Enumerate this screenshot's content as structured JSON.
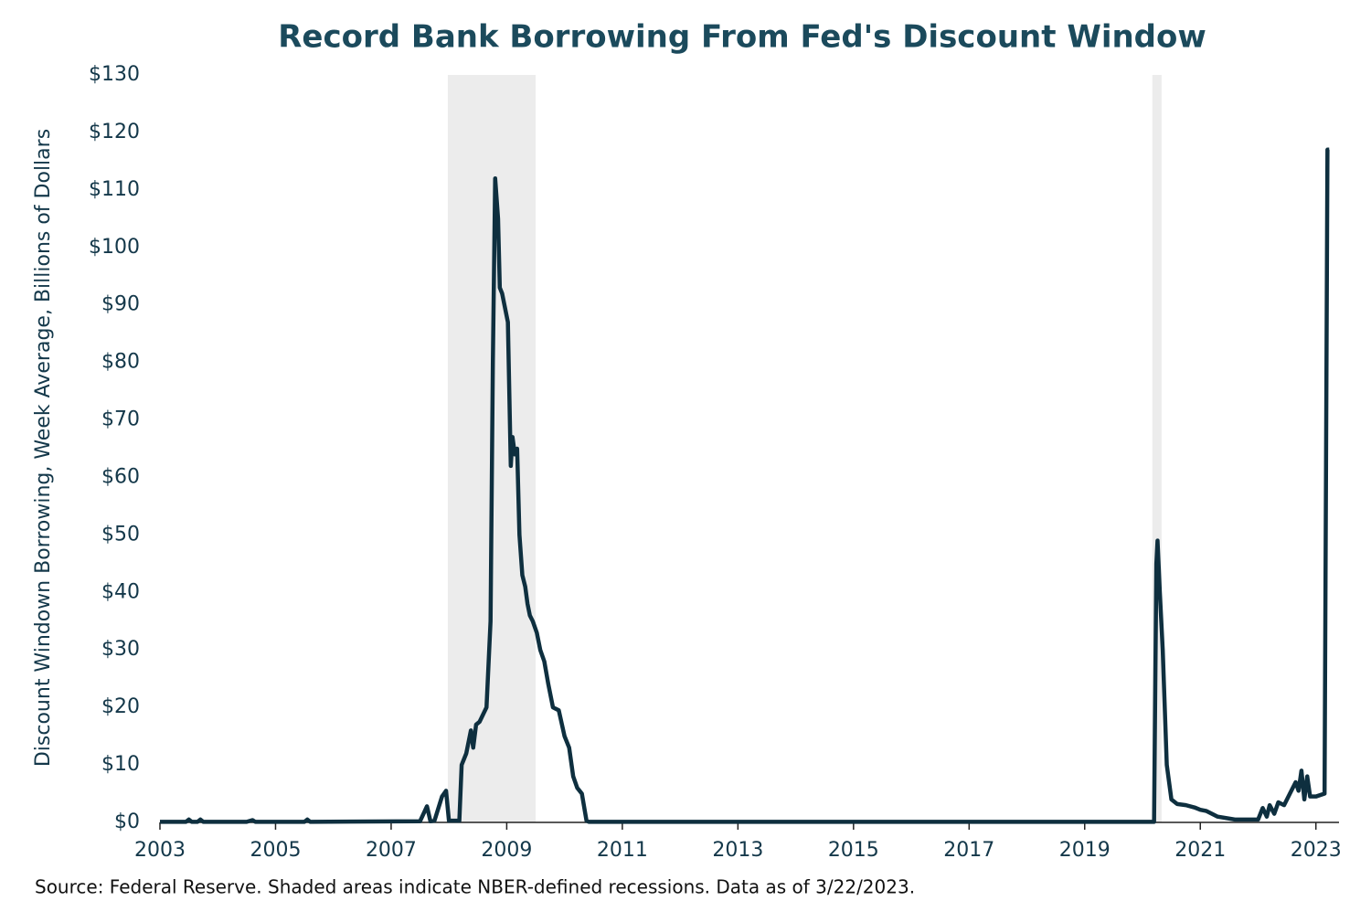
{
  "chart_data": {
    "type": "line",
    "title": "Record Bank Borrowing From Fed's Discount Window",
    "y_label": "Discount Windown Borrowing, Week Average, Billions of Dollars",
    "source": "Source: Federal Reserve. Shaded areas indicate NBER-defined recessions. Data as of 3/22/2023.",
    "xlim": [
      2003,
      2023.4
    ],
    "xticks": [
      2003,
      2005,
      2007,
      2009,
      2011,
      2013,
      2015,
      2017,
      2019,
      2021,
      2023
    ],
    "ylim": [
      0,
      130
    ],
    "yticks": [
      {
        "value": 0,
        "label": "$0"
      },
      {
        "value": 10,
        "label": "$10"
      },
      {
        "value": 20,
        "label": "$20"
      },
      {
        "value": 30,
        "label": "$30"
      },
      {
        "value": 40,
        "label": "$40"
      },
      {
        "value": 50,
        "label": "$50"
      },
      {
        "value": 60,
        "label": "$60"
      },
      {
        "value": 70,
        "label": "$70"
      },
      {
        "value": 80,
        "label": "$80"
      },
      {
        "value": 90,
        "label": "$90"
      },
      {
        "value": 100,
        "label": "$100"
      },
      {
        "value": 110,
        "label": "$110"
      },
      {
        "value": 120,
        "label": "$120"
      },
      {
        "value": 130,
        "label": "$130"
      }
    ],
    "recessions": [
      [
        2007.98,
        2009.5
      ],
      [
        2020.17,
        2020.33
      ]
    ],
    "recession_color": "#ececec",
    "series": [
      {
        "name": "Discount window borrowing",
        "color": "#0e2f3f",
        "x": [
          2003.0,
          2003.45,
          2003.5,
          2003.55,
          2003.65,
          2003.7,
          2003.75,
          2004.5,
          2004.6,
          2004.65,
          2005.5,
          2005.55,
          2005.6,
          2007.5,
          2007.62,
          2007.68,
          2007.75,
          2007.88,
          2007.95,
          2008.0,
          2008.18,
          2008.22,
          2008.3,
          2008.38,
          2008.42,
          2008.47,
          2008.53,
          2008.65,
          2008.72,
          2008.76,
          2008.8,
          2008.85,
          2008.88,
          2008.92,
          2008.96,
          2009.02,
          2009.07,
          2009.1,
          2009.14,
          2009.18,
          2009.22,
          2009.27,
          2009.32,
          2009.36,
          2009.4,
          2009.45,
          2009.52,
          2009.58,
          2009.65,
          2009.72,
          2009.8,
          2009.9,
          2010.0,
          2010.08,
          2010.15,
          2010.22,
          2010.3,
          2010.38,
          2010.42,
          2011.0,
          2015.0,
          2020.2,
          2020.24,
          2020.26,
          2020.3,
          2020.35,
          2020.42,
          2020.5,
          2020.6,
          2020.75,
          2020.9,
          2021.0,
          2021.1,
          2021.3,
          2021.6,
          2022.0,
          2022.08,
          2022.15,
          2022.2,
          2022.28,
          2022.35,
          2022.45,
          2022.55,
          2022.65,
          2022.7,
          2022.75,
          2022.8,
          2022.85,
          2022.9,
          2023.0,
          2023.15,
          2023.2,
          2023.23
        ],
        "values": [
          0.1,
          0.1,
          0.5,
          0.1,
          0.1,
          0.5,
          0.1,
          0.1,
          0.4,
          0.1,
          0.1,
          0.5,
          0.1,
          0.2,
          2.8,
          0.2,
          0.3,
          4.5,
          5.5,
          0.3,
          0.3,
          10,
          12,
          16,
          13,
          17,
          17.5,
          20,
          35,
          80,
          112,
          105,
          93,
          92,
          90,
          87,
          62,
          67,
          64,
          65,
          50,
          43,
          41,
          38,
          36,
          35,
          33,
          30,
          28,
          24,
          20,
          19.5,
          15,
          13,
          8,
          6,
          5,
          0.3,
          0.1,
          0.1,
          0.1,
          0.1,
          45,
          49,
          40,
          30,
          10,
          4,
          3.2,
          3,
          2.6,
          2.2,
          2,
          1,
          0.5,
          0.5,
          2.5,
          1,
          3,
          1.5,
          3.5,
          3,
          5,
          7,
          5.5,
          9,
          4,
          8,
          4.5,
          4.5,
          5,
          117,
          117
        ]
      }
    ]
  }
}
